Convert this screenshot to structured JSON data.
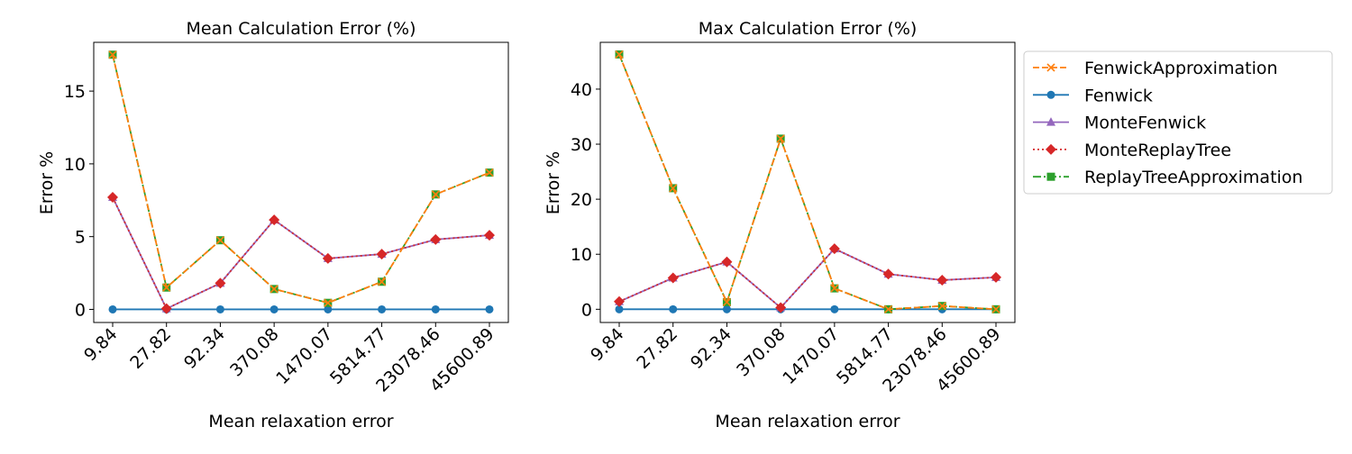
{
  "chart_data": [
    {
      "type": "line",
      "title": "Mean Calculation Error (%)",
      "xlabel": "Mean relaxation error",
      "ylabel": "Error %",
      "x_tick_labels": [
        "9.84",
        "27.82",
        "92.34",
        "370.08",
        "1470.07",
        "5814.77",
        "23078.46",
        "45600.89"
      ],
      "x": [
        9.84,
        27.82,
        92.34,
        370.08,
        1470.07,
        5814.77,
        23078.46,
        45600.89
      ],
      "x_scale": "log",
      "y_ticks": [
        0,
        5,
        10,
        15
      ],
      "ylim": [
        -0.9,
        18.35
      ],
      "grid": false,
      "series": [
        {
          "name": "FenwickApproximation",
          "color": "#ff7f0e",
          "values": [
            17.5,
            1.5,
            4.75,
            1.4,
            0.45,
            1.9,
            7.9,
            9.4
          ]
        },
        {
          "name": "Fenwick",
          "color": "#1f77b4",
          "values": [
            0,
            0,
            0,
            0,
            0,
            0,
            0,
            0
          ]
        },
        {
          "name": "MonteFenwick",
          "color": "#9467bd",
          "values": [
            7.7,
            0.05,
            1.8,
            6.15,
            3.5,
            3.8,
            4.8,
            5.1
          ]
        },
        {
          "name": "MonteReplayTree",
          "color": "#d62728",
          "values": [
            7.7,
            0.05,
            1.8,
            6.15,
            3.5,
            3.8,
            4.8,
            5.1
          ]
        },
        {
          "name": "ReplayTreeApproximation",
          "color": "#2ca02c",
          "values": [
            17.5,
            1.5,
            4.75,
            1.4,
            0.45,
            1.9,
            7.9,
            9.4
          ]
        }
      ]
    },
    {
      "type": "line",
      "title": "Max Calculation Error (%)",
      "xlabel": "Mean relaxation error",
      "ylabel": "Error %",
      "x_tick_labels": [
        "9.84",
        "27.82",
        "92.34",
        "370.08",
        "1470.07",
        "5814.77",
        "23078.46",
        "45600.89"
      ],
      "x": [
        9.84,
        27.82,
        92.34,
        370.08,
        1470.07,
        5814.77,
        23078.46,
        45600.89
      ],
      "x_scale": "log",
      "y_ticks": [
        0,
        10,
        20,
        30,
        40
      ],
      "ylim": [
        -2.4,
        48.5
      ],
      "grid": false,
      "series": [
        {
          "name": "FenwickApproximation",
          "color": "#ff7f0e",
          "values": [
            46.3,
            22.0,
            1.3,
            31.0,
            3.8,
            0.0,
            0.6,
            0.0
          ]
        },
        {
          "name": "Fenwick",
          "color": "#1f77b4",
          "values": [
            0,
            0,
            0,
            0,
            0,
            0,
            0,
            0
          ]
        },
        {
          "name": "MonteFenwick",
          "color": "#9467bd",
          "values": [
            1.4,
            5.7,
            8.6,
            0.3,
            11.0,
            6.4,
            5.3,
            5.8
          ]
        },
        {
          "name": "MonteReplayTree",
          "color": "#d62728",
          "values": [
            1.4,
            5.7,
            8.6,
            0.3,
            11.0,
            6.4,
            5.3,
            5.8
          ]
        },
        {
          "name": "ReplayTreeApproximation",
          "color": "#2ca02c",
          "values": [
            46.3,
            22.0,
            1.3,
            31.0,
            3.8,
            0.0,
            0.6,
            0.0
          ]
        }
      ]
    }
  ],
  "legend": {
    "placement": "outside-right",
    "entries": [
      {
        "label": "FenwickApproximation",
        "color": "#ff7f0e",
        "marker": "x",
        "dash": "dashed"
      },
      {
        "label": "Fenwick",
        "color": "#1f77b4",
        "marker": "circle",
        "dash": "solid"
      },
      {
        "label": "MonteFenwick",
        "color": "#9467bd",
        "marker": "triangle",
        "dash": "solid"
      },
      {
        "label": "MonteReplayTree",
        "color": "#d62728",
        "marker": "diamond",
        "dash": "dotted"
      },
      {
        "label": "ReplayTreeApproximation",
        "color": "#2ca02c",
        "marker": "square",
        "dash": "dashdot"
      }
    ]
  }
}
